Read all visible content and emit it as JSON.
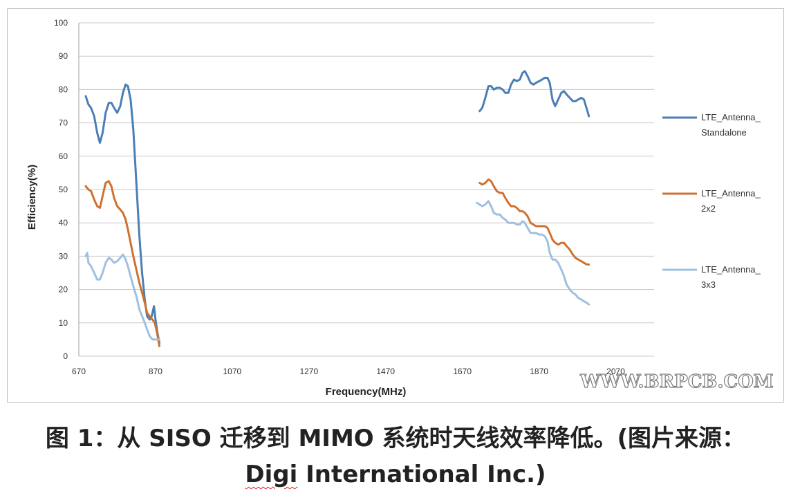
{
  "chart_data": {
    "type": "line",
    "xlabel": "Frequency(MHz)",
    "ylabel": "Efficiency(%)",
    "xlim": [
      670,
      2170
    ],
    "ylim": [
      0,
      100
    ],
    "xticks": [
      670,
      870,
      1070,
      1270,
      1470,
      1670,
      1870,
      2070
    ],
    "yticks": [
      0,
      10,
      20,
      30,
      40,
      50,
      60,
      70,
      80,
      90,
      100
    ],
    "grid": "horizontal",
    "legend_position": "right",
    "series": [
      {
        "name": "LTE_Antenna_Standalone",
        "legend_lines": [
          "LTE_Antenna_",
          "Standalone"
        ],
        "color": "#4a7eb5",
        "segments": [
          [
            [
              688,
              78
            ],
            [
              695,
              75.5
            ],
            [
              702,
              74.5
            ],
            [
              710,
              72
            ],
            [
              718,
              67
            ],
            [
              725,
              64
            ],
            [
              732,
              67
            ],
            [
              740,
              73
            ],
            [
              748,
              76
            ],
            [
              755,
              76
            ],
            [
              762,
              74.5
            ],
            [
              770,
              73
            ],
            [
              778,
              75
            ],
            [
              785,
              79
            ],
            [
              792,
              81.5
            ],
            [
              798,
              81
            ],
            [
              805,
              77
            ],
            [
              812,
              68
            ],
            [
              820,
              52
            ],
            [
              828,
              36
            ],
            [
              835,
              25
            ],
            [
              842,
              17
            ],
            [
              848,
              12
            ],
            [
              855,
              11
            ],
            [
              860,
              12
            ],
            [
              866,
              15
            ],
            [
              870,
              11
            ],
            [
              875,
              7
            ],
            [
              880,
              4
            ]
          ],
          [
            [
              1715,
              73.5
            ],
            [
              1722,
              74.5
            ],
            [
              1730,
              77.5
            ],
            [
              1738,
              81
            ],
            [
              1745,
              81
            ],
            [
              1752,
              80
            ],
            [
              1760,
              80.5
            ],
            [
              1768,
              80.5
            ],
            [
              1775,
              80
            ],
            [
              1782,
              79
            ],
            [
              1790,
              79
            ],
            [
              1797,
              81.5
            ],
            [
              1805,
              83
            ],
            [
              1812,
              82.5
            ],
            [
              1820,
              83
            ],
            [
              1827,
              85
            ],
            [
              1833,
              85.5
            ],
            [
              1840,
              84
            ],
            [
              1848,
              82
            ],
            [
              1855,
              81.5
            ],
            [
              1862,
              82
            ],
            [
              1870,
              82.5
            ],
            [
              1878,
              83
            ],
            [
              1885,
              83.5
            ],
            [
              1892,
              83.5
            ],
            [
              1898,
              82
            ],
            [
              1905,
              77
            ],
            [
              1912,
              75
            ],
            [
              1920,
              77
            ],
            [
              1928,
              79
            ],
            [
              1935,
              79.5
            ],
            [
              1942,
              78.5
            ],
            [
              1950,
              77.5
            ],
            [
              1958,
              76.5
            ],
            [
              1965,
              76.5
            ],
            [
              1972,
              77
            ],
            [
              1980,
              77.5
            ],
            [
              1987,
              77
            ],
            [
              1995,
              74
            ],
            [
              2000,
              72
            ]
          ]
        ]
      },
      {
        "name": "LTE_Antenna_2x2",
        "legend_lines": [
          "LTE_Antenna_",
          "2x2"
        ],
        "color": "#d07030",
        "segments": [
          [
            [
              688,
              51
            ],
            [
              695,
              50
            ],
            [
              702,
              49.5
            ],
            [
              710,
              47
            ],
            [
              718,
              45
            ],
            [
              725,
              44.5
            ],
            [
              732,
              48
            ],
            [
              740,
              52
            ],
            [
              748,
              52.5
            ],
            [
              755,
              51
            ],
            [
              762,
              47.5
            ],
            [
              770,
              45
            ],
            [
              778,
              44
            ],
            [
              785,
              43
            ],
            [
              792,
              41
            ],
            [
              798,
              38
            ],
            [
              805,
              34
            ],
            [
              812,
              30
            ],
            [
              820,
              26
            ],
            [
              828,
              22
            ],
            [
              835,
              19
            ],
            [
              842,
              16
            ],
            [
              848,
              13
            ],
            [
              855,
              12
            ],
            [
              862,
              11
            ],
            [
              868,
              10
            ],
            [
              874,
              7
            ],
            [
              880,
              3
            ]
          ],
          [
            [
              1715,
              52
            ],
            [
              1722,
              51.5
            ],
            [
              1730,
              52
            ],
            [
              1738,
              53
            ],
            [
              1745,
              52.5
            ],
            [
              1752,
              51
            ],
            [
              1760,
              49.5
            ],
            [
              1768,
              49
            ],
            [
              1775,
              49
            ],
            [
              1782,
              47.5
            ],
            [
              1790,
              46
            ],
            [
              1797,
              45
            ],
            [
              1805,
              45
            ],
            [
              1812,
              44.5
            ],
            [
              1820,
              43.5
            ],
            [
              1827,
              43.5
            ],
            [
              1833,
              43
            ],
            [
              1840,
              42
            ],
            [
              1848,
              40
            ],
            [
              1855,
              39.5
            ],
            [
              1862,
              39
            ],
            [
              1870,
              39
            ],
            [
              1878,
              39
            ],
            [
              1885,
              39
            ],
            [
              1892,
              38.5
            ],
            [
              1898,
              37
            ],
            [
              1905,
              35
            ],
            [
              1912,
              34
            ],
            [
              1920,
              33.5
            ],
            [
              1928,
              34
            ],
            [
              1935,
              34
            ],
            [
              1942,
              33
            ],
            [
              1950,
              32
            ],
            [
              1958,
              30.5
            ],
            [
              1965,
              29.5
            ],
            [
              1972,
              29
            ],
            [
              1980,
              28.5
            ],
            [
              1987,
              28
            ],
            [
              1995,
              27.5
            ],
            [
              2000,
              27.5
            ]
          ]
        ]
      },
      {
        "name": "LTE_Antenna_3x3",
        "legend_lines": [
          "LTE_Antenna_",
          "3x3"
        ],
        "color": "#9fc0e0",
        "segments": [
          [
            [
              688,
              30
            ],
            [
              692,
              31
            ],
            [
              695,
              28
            ],
            [
              702,
              27
            ],
            [
              710,
              25
            ],
            [
              718,
              23
            ],
            [
              725,
              23
            ],
            [
              732,
              25
            ],
            [
              740,
              28
            ],
            [
              748,
              29.5
            ],
            [
              755,
              29
            ],
            [
              762,
              28
            ],
            [
              770,
              28.5
            ],
            [
              778,
              29.5
            ],
            [
              785,
              30.5
            ],
            [
              792,
              29
            ],
            [
              798,
              27
            ],
            [
              805,
              24
            ],
            [
              812,
              21
            ],
            [
              820,
              18
            ],
            [
              828,
              14
            ],
            [
              835,
              12
            ],
            [
              842,
              10
            ],
            [
              848,
              8
            ],
            [
              855,
              6
            ],
            [
              862,
              5
            ],
            [
              868,
              5
            ],
            [
              874,
              5
            ],
            [
              880,
              5
            ]
          ],
          [
            [
              1708,
              46
            ],
            [
              1715,
              45.5
            ],
            [
              1722,
              45
            ],
            [
              1730,
              45.5
            ],
            [
              1738,
              46.5
            ],
            [
              1745,
              45
            ],
            [
              1752,
              43
            ],
            [
              1760,
              42.5
            ],
            [
              1768,
              42.5
            ],
            [
              1775,
              41.5
            ],
            [
              1782,
              41
            ],
            [
              1790,
              40
            ],
            [
              1797,
              40
            ],
            [
              1805,
              40
            ],
            [
              1812,
              39.5
            ],
            [
              1820,
              39.5
            ],
            [
              1827,
              40.5
            ],
            [
              1833,
              40
            ],
            [
              1840,
              38.5
            ],
            [
              1848,
              37
            ],
            [
              1855,
              37
            ],
            [
              1862,
              37
            ],
            [
              1870,
              36.5
            ],
            [
              1878,
              36.5
            ],
            [
              1885,
              36
            ],
            [
              1892,
              34.5
            ],
            [
              1898,
              31
            ],
            [
              1905,
              29
            ],
            [
              1912,
              29
            ],
            [
              1920,
              28
            ],
            [
              1928,
              26
            ],
            [
              1935,
              24
            ],
            [
              1942,
              21.5
            ],
            [
              1950,
              20
            ],
            [
              1958,
              19
            ],
            [
              1965,
              18.5
            ],
            [
              1972,
              17.5
            ],
            [
              1980,
              17
            ],
            [
              1987,
              16.5
            ],
            [
              1995,
              16
            ],
            [
              2000,
              15.5
            ]
          ]
        ]
      }
    ]
  },
  "watermark": "WWW.BRPCB.COM",
  "caption": {
    "line1": "图 1：从 SISO 迁移到 MIMO 系统时天线效率降低。(图片来源：",
    "line2_word1": "Digi",
    "line2_rest": " International Inc.)"
  }
}
